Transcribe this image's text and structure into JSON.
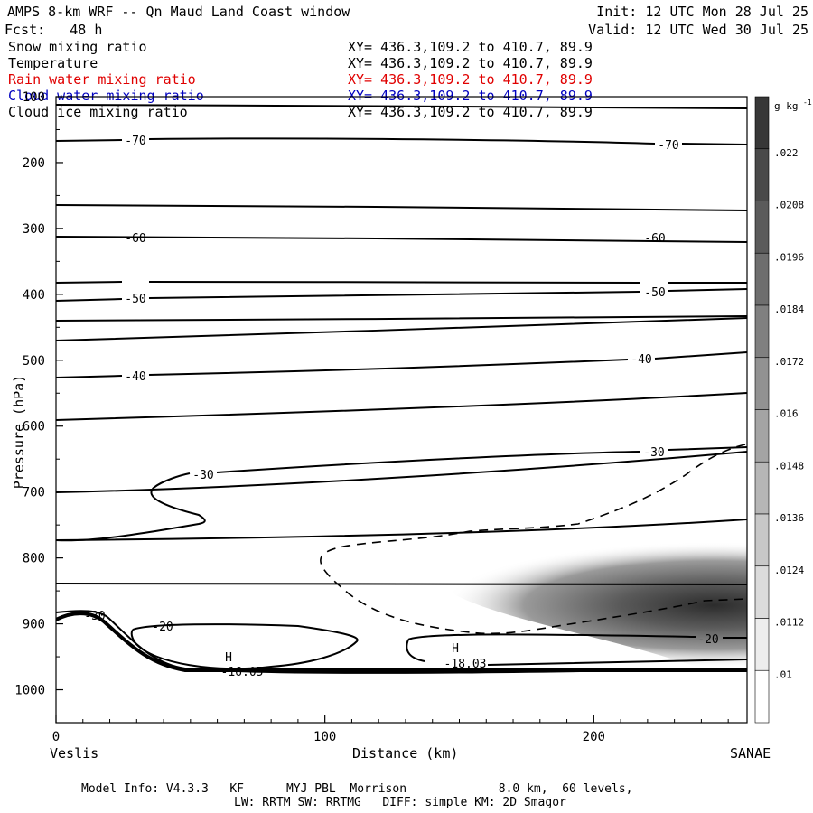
{
  "header": {
    "title": "AMPS 8-km WRF -- Qn Maud Land Coast window",
    "forecast": "Fcst:   48 h",
    "init": "Init: 12 UTC Mon 28 Jul 25",
    "valid": "Valid: 12 UTC Wed 30 Jul 25"
  },
  "fields": [
    {
      "label": "Snow mixing ratio",
      "xy": "XY= 436.3,109.2 to 410.7, 89.9",
      "color": "#000000"
    },
    {
      "label": "Temperature",
      "xy": "XY= 436.3,109.2 to 410.7, 89.9",
      "color": "#000000"
    },
    {
      "label": "Rain water mixing ratio",
      "xy": "XY= 436.3,109.2 to 410.7, 89.9",
      "color": "#e00000"
    },
    {
      "label": "Cloud water mixing ratio",
      "xy": "XY= 436.3,109.2 to 410.7, 89.9",
      "color": "#0000c0"
    },
    {
      "label": "Cloud ice mixing ratio",
      "xy": "XY= 436.3,109.2 to 410.7, 89.9",
      "color": "#000000"
    }
  ],
  "chart_data": {
    "type": "contour",
    "xlabel": "Distance (km)",
    "ylabel": "Pressure (hPa)",
    "xlim": [
      0,
      257
    ],
    "ylim": [
      1050,
      100
    ],
    "xticks": [
      0,
      100,
      200
    ],
    "yticks": [
      100,
      200,
      300,
      400,
      500,
      600,
      700,
      800,
      900,
      1000
    ],
    "x_end_labels": {
      "left": "Veslis",
      "right": "SANAE"
    },
    "colorbar": {
      "unit": "g kg",
      "unit_exp": "-1",
      "levels": [
        ".022",
        ".0208",
        ".0196",
        ".0184",
        ".0172",
        ".016",
        ".0148",
        ".0136",
        ".0124",
        ".0112",
        ".01"
      ]
    },
    "temperature_contours": [
      {
        "label": "-70",
        "points": [
          [
            0,
            150
          ],
          [
            100,
            152
          ],
          [
            200,
            155
          ],
          [
            257,
            160
          ]
        ]
      },
      {
        "label": "-60",
        "points": [
          [
            0,
            308
          ],
          [
            100,
            310
          ],
          [
            200,
            311
          ],
          [
            257,
            311
          ]
        ]
      },
      {
        "label": "-50",
        "points": [
          [
            0,
            408
          ],
          [
            100,
            404
          ],
          [
            200,
            398
          ],
          [
            257,
            392
          ]
        ]
      },
      {
        "label": "-40",
        "points": [
          [
            0,
            524
          ],
          [
            100,
            521
          ],
          [
            200,
            510
          ],
          [
            257,
            497
          ]
        ]
      },
      {
        "label": "-30",
        "points": [
          [
            50,
            750
          ],
          [
            40,
            722
          ],
          [
            27,
            690
          ],
          [
            60,
            670
          ],
          [
            200,
            655
          ],
          [
            257,
            635
          ]
        ]
      },
      {
        "label": "-20",
        "points": [
          [
            34,
            904
          ],
          [
            60,
            918
          ],
          [
            113,
            928
          ],
          [
            95,
            948
          ],
          [
            30,
            910
          ]
        ]
      }
    ],
    "pressure_minima": [
      {
        "label": "H",
        "value": "-16.05",
        "x": 65,
        "p": 975
      },
      {
        "label": "H",
        "value": "-18.03",
        "x": 148,
        "p": 960
      }
    ],
    "cloud_ice_peak": {
      "x": 245,
      "p": 865,
      "value": 0.022
    }
  },
  "footer": {
    "line1": "Model Info: V4.3.3   KF      MYJ PBL  Morrison             8.0 km,  60 levels,",
    "line2": "LW: RRTM SW: RRTMG   DIFF: simple KM: 2D Smagor"
  }
}
